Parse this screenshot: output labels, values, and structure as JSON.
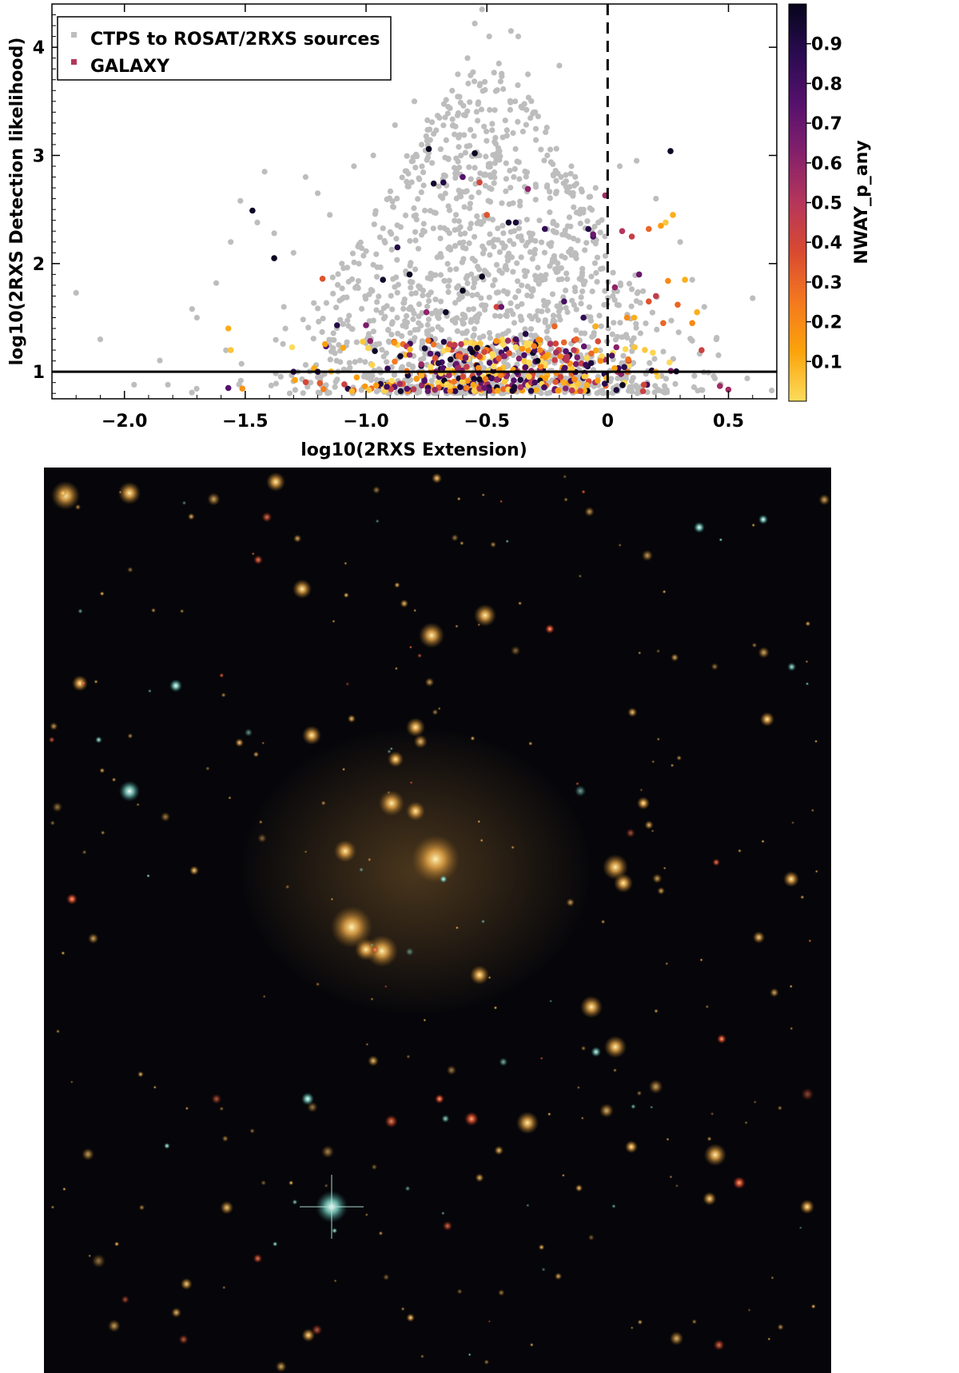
{
  "chart_data": {
    "type": "scatter",
    "xlabel": "log10(2RXS Extension)",
    "ylabel": "log10(2RXS Detection likelihood)",
    "xlim": [
      -2.3,
      0.7
    ],
    "ylim": [
      0.75,
      4.4
    ],
    "x_ticks": [
      -2.0,
      -1.5,
      -1.0,
      -0.5,
      0,
      0.5
    ],
    "x_tick_labels": [
      "−2.0",
      "−1.5",
      "−1.0",
      "−0.5",
      "0",
      "0.5"
    ],
    "y_ticks": [
      1,
      2,
      3,
      4
    ],
    "y_tick_labels": [
      "1",
      "2",
      "3",
      "4"
    ],
    "reference_lines": [
      {
        "orientation": "horizontal",
        "value": 1,
        "style": "solid"
      },
      {
        "orientation": "vertical",
        "value": 0,
        "style": "dashed"
      }
    ],
    "legend": {
      "placement": "top-left",
      "entries": [
        {
          "label": "CTPS to ROSAT/2RXS sources",
          "color": "#bdbdbd"
        },
        {
          "label": "GALAXY",
          "color": "#b5365b"
        }
      ]
    },
    "colorbar": {
      "label": "NWAY_p_any",
      "range": [
        0.0,
        1.0
      ],
      "ticks": [
        0.1,
        0.2,
        0.3,
        0.4,
        0.5,
        0.6,
        0.7,
        0.8,
        0.9
      ],
      "tick_labels": [
        "0.1",
        "0.2",
        "0.3",
        "0.4",
        "0.5",
        "0.6",
        "0.7",
        "0.8",
        "0.9"
      ],
      "colormap": "inferno_r",
      "stops": [
        "#fcdc5c",
        "#fca30b",
        "#f4791f",
        "#d94a30",
        "#b5365b",
        "#84206b",
        "#55116d",
        "#2a0b50",
        "#06051b"
      ]
    },
    "series": [
      {
        "name": "CTPS to ROSAT/2RXS sources",
        "color": "#bdbdbd",
        "points": [
          [
            -2.2,
            1.73
          ],
          [
            -2.1,
            1.3
          ],
          [
            -1.96,
            0.88
          ],
          [
            -1.82,
            0.88
          ],
          [
            -1.72,
            1.58
          ],
          [
            -1.7,
            1.5
          ],
          [
            -1.62,
            1.82
          ],
          [
            -1.56,
            2.2
          ],
          [
            -1.52,
            2.58
          ],
          [
            -1.45,
            2.38
          ],
          [
            -1.42,
            2.85
          ],
          [
            -1.38,
            2.28
          ],
          [
            -1.34,
            1.6
          ],
          [
            -1.3,
            2.1
          ],
          [
            -1.25,
            2.8
          ],
          [
            -1.2,
            2.65
          ],
          [
            -1.15,
            2.45
          ],
          [
            -1.1,
            2.0
          ],
          [
            -1.05,
            2.9
          ],
          [
            -0.97,
            3.0
          ],
          [
            -0.88,
            3.28
          ],
          [
            -0.8,
            3.5
          ],
          [
            -0.72,
            3.2
          ],
          [
            -0.66,
            3.45
          ],
          [
            -0.62,
            3.75
          ],
          [
            -0.58,
            3.9
          ],
          [
            -0.55,
            4.22
          ],
          [
            -0.52,
            4.35
          ],
          [
            -0.49,
            4.1
          ],
          [
            -0.45,
            3.85
          ],
          [
            -0.4,
            4.15
          ],
          [
            -0.37,
            4.1
          ],
          [
            -0.33,
            3.75
          ],
          [
            -0.3,
            3.4
          ],
          [
            -0.25,
            3.0
          ],
          [
            -0.2,
            3.83
          ],
          [
            -0.15,
            2.9
          ],
          [
            -0.1,
            2.5
          ],
          [
            -0.05,
            2.7
          ],
          [
            0.05,
            2.9
          ],
          [
            0.12,
            2.95
          ],
          [
            0.2,
            2.6
          ],
          [
            0.3,
            2.2
          ],
          [
            0.35,
            1.85
          ],
          [
            0.4,
            1.6
          ],
          [
            0.45,
            1.3
          ],
          [
            0.6,
            1.68
          ]
        ],
        "generated_points": {
          "count": 1500,
          "x_center": -0.5,
          "x_spread": 0.36,
          "y_min": 0.8
        }
      },
      {
        "name": "GALAXY",
        "points": [
          [
            -1.47,
            2.49,
            0.97
          ],
          [
            -1.38,
            2.05,
            0.98
          ],
          [
            -1.12,
            1.43,
            0.9
          ],
          [
            -0.74,
            3.06,
            0.99
          ],
          [
            -0.72,
            2.74,
            0.95
          ],
          [
            -0.68,
            2.75,
            0.9
          ],
          [
            -0.6,
            2.8,
            0.75
          ],
          [
            -0.55,
            3.02,
            0.99
          ],
          [
            -0.53,
            2.75,
            0.4
          ],
          [
            -0.5,
            2.45,
            0.35
          ],
          [
            -0.41,
            2.38,
            0.95
          ],
          [
            -0.38,
            2.38,
            0.92
          ],
          [
            -0.33,
            2.69,
            0.6
          ],
          [
            -0.26,
            2.32,
            0.85
          ],
          [
            -0.08,
            2.32,
            0.9
          ],
          [
            -0.06,
            2.25,
            0.8
          ],
          [
            -0.06,
            2.27,
            0.7
          ],
          [
            -0.01,
            2.63,
            0.55
          ],
          [
            0.06,
            2.3,
            0.5
          ],
          [
            0.1,
            2.25,
            0.45
          ],
          [
            0.17,
            2.32,
            0.3
          ],
          [
            0.24,
            2.38,
            0.05
          ],
          [
            0.26,
            3.04,
            0.98
          ],
          [
            0.27,
            2.45,
            0.1
          ],
          [
            0.22,
            2.35,
            0.15
          ],
          [
            -1.57,
            1.4,
            0.1
          ],
          [
            -1.56,
            1.2,
            0.05
          ],
          [
            -1.18,
            1.86,
            0.35
          ],
          [
            -1.0,
            1.43,
            0.65
          ],
          [
            -0.93,
            1.85,
            0.95
          ],
          [
            -0.87,
            2.15,
            0.9
          ],
          [
            -0.82,
            1.9,
            0.99
          ],
          [
            -0.75,
            1.55,
            0.6
          ],
          [
            -0.67,
            1.55,
            0.97
          ],
          [
            -0.6,
            1.75,
            0.99
          ],
          [
            -0.56,
            1.18,
            0.99
          ],
          [
            -0.54,
            1.22,
            0.98
          ],
          [
            -0.52,
            1.88,
            0.99
          ],
          [
            -0.46,
            1.6,
            0.4
          ],
          [
            -0.44,
            1.6,
            0.7
          ],
          [
            -0.38,
            1.3,
            0.8
          ],
          [
            -0.34,
            1.35,
            0.9
          ],
          [
            -0.29,
            1.1,
            0.99
          ],
          [
            -0.28,
            1.2,
            0.2
          ],
          [
            -0.22,
            1.42,
            0.3
          ],
          [
            -0.18,
            1.65,
            0.8
          ],
          [
            -0.14,
            1.2,
            0.5
          ],
          [
            -0.13,
            1.3,
            0.3
          ],
          [
            -0.1,
            1.5,
            0.85
          ],
          [
            -0.05,
            1.42,
            0.1
          ],
          [
            -0.03,
            1.1,
            0.2
          ],
          [
            0.03,
            1.78,
            0.6
          ],
          [
            0.08,
            1.5,
            0.2
          ],
          [
            0.11,
            1.5,
            0.1
          ],
          [
            0.13,
            1.9,
            0.7
          ],
          [
            0.17,
            1.65,
            0.35
          ],
          [
            0.2,
            1.7,
            0.45
          ],
          [
            0.23,
            1.45,
            0.3
          ],
          [
            0.25,
            1.84,
            0.2
          ],
          [
            0.29,
            1.62,
            0.3
          ],
          [
            0.32,
            1.85,
            0.1
          ],
          [
            0.35,
            1.45,
            0.2
          ],
          [
            0.37,
            1.55,
            0.1
          ],
          [
            0.2,
            1.0,
            0.1
          ],
          [
            0.15,
            0.88,
            0.4
          ],
          [
            -1.57,
            0.85,
            0.75
          ],
          [
            -1.3,
            1.0,
            0.85
          ],
          [
            -1.2,
            1.0,
            0.9
          ]
        ],
        "generated_points": {
          "count": 430,
          "x_center": -0.45,
          "x_spread": 0.32,
          "y_min": 0.82,
          "y_max": 1.3
        }
      }
    ]
  },
  "image_panel": {
    "description_color": "#06060a"
  }
}
